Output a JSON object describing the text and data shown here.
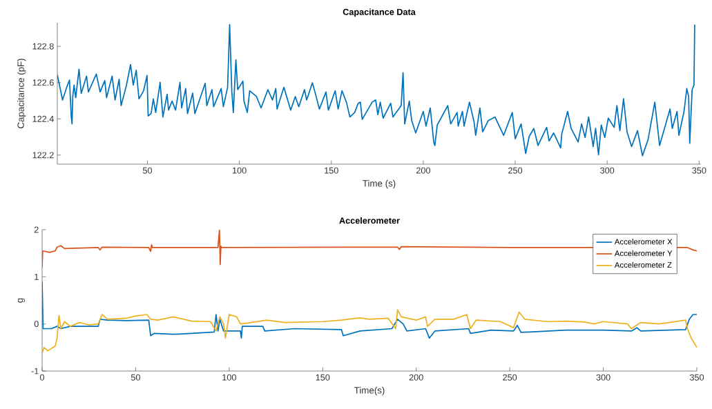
{
  "chart_data": [
    {
      "type": "line",
      "title": "Capacitance Data",
      "xlabel": "Time (s)",
      "ylabel": "Capacitance (pF)",
      "color": "#0072bd",
      "x": [
        1.0,
        3.85,
        6.3,
        7.6,
        8.6,
        9.0,
        9.4,
        10.1,
        11,
        12.8,
        14.0,
        16.9,
        17.9,
        22.2,
        24.3,
        26.8,
        27.8,
        30.8,
        32.4,
        34.6,
        35.7,
        38.6,
        40.8,
        42.3,
        43.9,
        45.4,
        47.9,
        49.8,
        50.4,
        52.0,
        53.2,
        54.5,
        56.9,
        58.4,
        60.7,
        61.5,
        63.4,
        65.3,
        67.7,
        68.6,
        70.8,
        71.8,
        74.6,
        75.8,
        81.4,
        82.3,
        85.1,
        86.0,
        90.1,
        91.3,
        93.6,
        94.7,
        95.9,
        96.7,
        98.1,
        99.1,
        101.9,
        102.5,
        104.3,
        105.6,
        109.3,
        111.8,
        115.5,
        118,
        119.8,
        120.5,
        124.2,
        127.9,
        130.4,
        132.3,
        135.4,
        136.6,
        139.7,
        141.6,
        143.5,
        147.1,
        148.4,
        152.1,
        153.7,
        155.8,
        158.2,
        160.1,
        162.7,
        164.6,
        165.8,
        166.8,
        172.2,
        174.1,
        175.3,
        176.6,
        178.2,
        182.3,
        183.5,
        188,
        189,
        189.9,
        192.4,
        193.7,
        195.9,
        200,
        201.5,
        203.8,
        205.7,
        206.3,
        207.6,
        213.3,
        214.9,
        218.4,
        219,
        221.3,
        222.2,
        225.1,
        227.6,
        228.5,
        230.8,
        232.3,
        235.4,
        239,
        243.7,
        248.4,
        250,
        253.2,
        255.7,
        257.6,
        260.1,
        262.4,
        267.1,
        268.4,
        270.9,
        274.7,
        275.3,
        278.5,
        280.4,
        284.2,
        286.1,
        288,
        289.9,
        292.4,
        293.7,
        295.3,
        296.8,
        298.7,
        300.6,
        303.8,
        305.3,
        306.9,
        308.9,
        310.8,
        313.3,
        316.5,
        319.2,
        322.2,
        325.9,
        328.5,
        334.2,
        335.4,
        338,
        339,
        341.8,
        343.3,
        344.3,
        344.9,
        346.2,
        347.2,
        347.6
      ],
      "values": [
        122.643,
        122.504,
        122.58,
        122.614,
        122.41,
        122.372,
        122.523,
        122.586,
        122.517,
        122.674,
        122.54,
        122.636,
        122.548,
        122.647,
        122.548,
        122.611,
        122.517,
        122.636,
        122.504,
        122.618,
        122.473,
        122.586,
        122.699,
        122.586,
        122.668,
        122.51,
        122.555,
        122.639,
        122.416,
        122.429,
        122.51,
        122.435,
        122.601,
        122.41,
        122.536,
        122.448,
        122.498,
        122.448,
        122.601,
        122.46,
        122.567,
        122.429,
        122.542,
        122.429,
        122.596,
        122.473,
        122.561,
        122.467,
        122.567,
        122.467,
        122.574,
        122.92,
        122.548,
        122.435,
        122.725,
        122.561,
        122.608,
        122.498,
        122.435,
        122.555,
        122.523,
        122.46,
        122.561,
        122.504,
        122.567,
        122.454,
        122.574,
        122.448,
        122.523,
        122.467,
        122.561,
        122.504,
        122.599,
        122.529,
        122.454,
        122.548,
        122.448,
        122.555,
        122.454,
        122.555,
        122.492,
        122.41,
        122.435,
        122.486,
        122.492,
        122.397,
        122.492,
        122.504,
        122.423,
        122.492,
        122.404,
        122.486,
        122.41,
        122.473,
        122.655,
        122.372,
        122.498,
        122.391,
        122.322,
        122.441,
        122.36,
        122.46,
        122.272,
        122.253,
        122.366,
        122.473,
        122.372,
        122.435,
        122.36,
        122.441,
        122.36,
        122.492,
        122.385,
        122.309,
        122.46,
        122.328,
        122.391,
        122.41,
        122.309,
        122.435,
        122.29,
        122.372,
        122.209,
        122.303,
        122.347,
        122.253,
        122.353,
        122.278,
        122.322,
        122.24,
        122.316,
        122.441,
        122.347,
        122.272,
        122.372,
        122.297,
        122.41,
        122.247,
        122.347,
        122.202,
        122.366,
        122.297,
        122.404,
        122.353,
        122.473,
        122.335,
        122.511,
        122.328,
        122.247,
        122.335,
        122.196,
        122.284,
        122.492,
        122.253,
        122.454,
        122.347,
        122.441,
        122.309,
        122.441,
        122.567,
        122.523,
        122.265,
        122.561,
        122.586,
        122.92
      ],
      "xlim": [
        1,
        351
      ],
      "ylim": [
        122.15,
        122.93
      ],
      "xticks": [
        50,
        100,
        150,
        200,
        250,
        300,
        350
      ],
      "yticks": [
        122.2,
        122.4,
        122.6,
        122.8
      ]
    },
    {
      "type": "line",
      "title": "Accelerometer",
      "xlabel": "Time(s)",
      "ylabel": "g",
      "legend": "top right",
      "xlim": [
        0,
        350
      ],
      "ylim": [
        -1,
        2
      ],
      "xticks": [
        0,
        50,
        100,
        150,
        200,
        250,
        300,
        350
      ],
      "yticks": [
        -1,
        0,
        1,
        2
      ],
      "series": [
        {
          "name": "Accelerometer X",
          "color": "#0072bd",
          "x": [
            0,
            0.5,
            5,
            8,
            10,
            15,
            25,
            30,
            31,
            35,
            45,
            57,
            58,
            60,
            70,
            80,
            92,
            93,
            94,
            95,
            97,
            106,
            106.5,
            107,
            118,
            119,
            135,
            160,
            161,
            170,
            187,
            190,
            193,
            195,
            205,
            207,
            210,
            228,
            229,
            240,
            252,
            254,
            256,
            280,
            300,
            315,
            318,
            320,
            344,
            346,
            348,
            350
          ],
          "values": [
            0.9,
            -0.1,
            -0.1,
            -0.05,
            -0.1,
            -0.05,
            -0.05,
            -0.05,
            0.1,
            0.08,
            0.07,
            0.08,
            -0.25,
            -0.2,
            -0.22,
            -0.2,
            -0.17,
            0.2,
            -0.15,
            0.1,
            -0.15,
            -0.15,
            -0.3,
            -0.05,
            -0.05,
            -0.15,
            -0.1,
            -0.12,
            -0.25,
            -0.15,
            -0.1,
            0.1,
            0.0,
            -0.15,
            -0.1,
            -0.3,
            -0.15,
            -0.1,
            -0.2,
            -0.13,
            -0.15,
            -0.03,
            -0.18,
            -0.13,
            -0.13,
            -0.15,
            -0.08,
            -0.15,
            -0.12,
            0.1,
            0.2,
            0.2
          ]
        },
        {
          "name": "Accelerometer Y",
          "color": "#d95319",
          "x": [
            0,
            0.3,
            4,
            7,
            8,
            10,
            12,
            30,
            31,
            32,
            57,
            58,
            58.5,
            59,
            94,
            94.8,
            95.2,
            95.6,
            96,
            190,
            191,
            192,
            250,
            280,
            340,
            345,
            348,
            350
          ],
          "values": [
            1.2,
            1.55,
            1.52,
            1.55,
            1.63,
            1.66,
            1.6,
            1.62,
            1.57,
            1.63,
            1.62,
            1.54,
            1.68,
            1.62,
            1.62,
            1.99,
            1.26,
            1.65,
            1.62,
            1.63,
            1.58,
            1.64,
            1.62,
            1.62,
            1.62,
            1.62,
            1.57,
            1.55
          ]
        },
        {
          "name": "Accelerometer Z",
          "color": "#edb120",
          "x": [
            0,
            1,
            3,
            7,
            8,
            9,
            10,
            12,
            15,
            20,
            25,
            30,
            32,
            35,
            45,
            50,
            56,
            58,
            62,
            70,
            80,
            90,
            93,
            95,
            97,
            98,
            100,
            104,
            106,
            110,
            120,
            130,
            150,
            160,
            170,
            175,
            185,
            189,
            190,
            192,
            200,
            205,
            206,
            210,
            220,
            227,
            229,
            232,
            245,
            252,
            255,
            258,
            270,
            280,
            290,
            295,
            300,
            313,
            315,
            320,
            330,
            344,
            345,
            347,
            350
          ],
          "values": [
            -0.62,
            -0.5,
            -0.57,
            -0.47,
            -0.3,
            0.18,
            -0.1,
            0.05,
            -0.05,
            0.03,
            -0.02,
            0.0,
            0.2,
            0.1,
            0.12,
            0.17,
            0.2,
            0.1,
            0.08,
            0.15,
            0.06,
            0.05,
            -0.15,
            0.15,
            0.0,
            -0.3,
            0.2,
            0.15,
            0.0,
            0.02,
            0.08,
            0.03,
            0.05,
            0.08,
            0.13,
            0.1,
            0.12,
            -0.1,
            0.3,
            0.15,
            0.08,
            0.15,
            -0.05,
            0.1,
            0.1,
            0.2,
            -0.1,
            0.08,
            0.05,
            -0.08,
            0.25,
            0.1,
            0.05,
            0.06,
            0.04,
            0.0,
            0.05,
            0.0,
            -0.1,
            0.03,
            0.0,
            0.08,
            -0.1,
            -0.3,
            -0.5
          ]
        }
      ]
    }
  ]
}
